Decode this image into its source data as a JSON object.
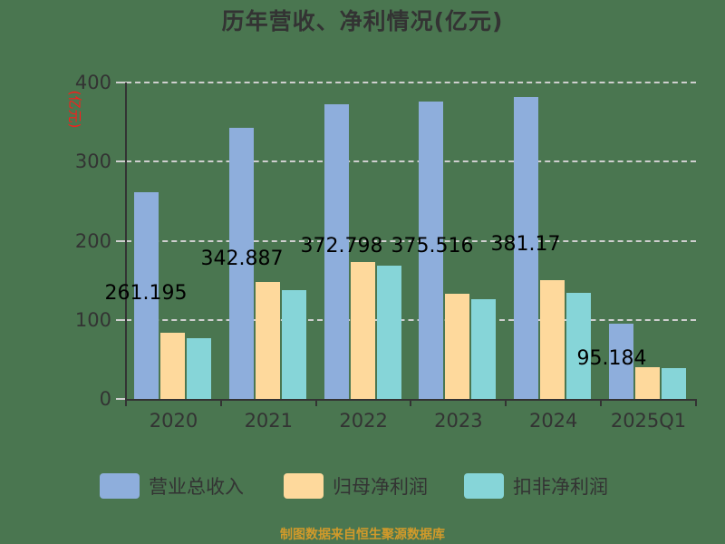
{
  "title": "历年营收、净利情况(亿元)",
  "unit_label": "(亿元)",
  "footer": "制图数据来自恒生聚源数据库",
  "colors": {
    "background": "#4a7650",
    "revenue": "#8eaedc",
    "net_profit": "#fed99c",
    "deducted_profit": "#86d5d8",
    "grid": "#cfcfcf",
    "axis": "#333333",
    "unit": "#ff1a1a",
    "footer": "#d29a2a"
  },
  "legend": [
    {
      "label": "营业总收入",
      "color": "#8eaedc"
    },
    {
      "label": "归母净利润",
      "color": "#fed99c"
    },
    {
      "label": "扣非净利润",
      "color": "#86d5d8"
    }
  ],
  "chart_data": {
    "type": "bar",
    "title": "历年营收、净利情况(亿元)",
    "xlabel": "",
    "ylabel": "(亿元)",
    "ylim": [
      0,
      400
    ],
    "yticks": [
      0,
      100,
      200,
      300,
      400
    ],
    "grid": true,
    "legend_position": "bottom",
    "categories": [
      "2020",
      "2021",
      "2022",
      "2023",
      "2024",
      "2025Q1"
    ],
    "series": [
      {
        "name": "营业总收入",
        "values": [
          261.195,
          342.887,
          372.798,
          375.516,
          381.17,
          95.184
        ]
      },
      {
        "name": "归母净利润",
        "values": [
          84,
          148,
          173,
          133,
          150,
          40
        ]
      },
      {
        "name": "扣非净利润",
        "values": [
          77,
          137,
          169,
          126,
          134,
          39
        ]
      }
    ],
    "data_labels": [
      "261.195",
      "342.887",
      "372.798",
      "375.516",
      "381.17",
      "95.184"
    ]
  }
}
